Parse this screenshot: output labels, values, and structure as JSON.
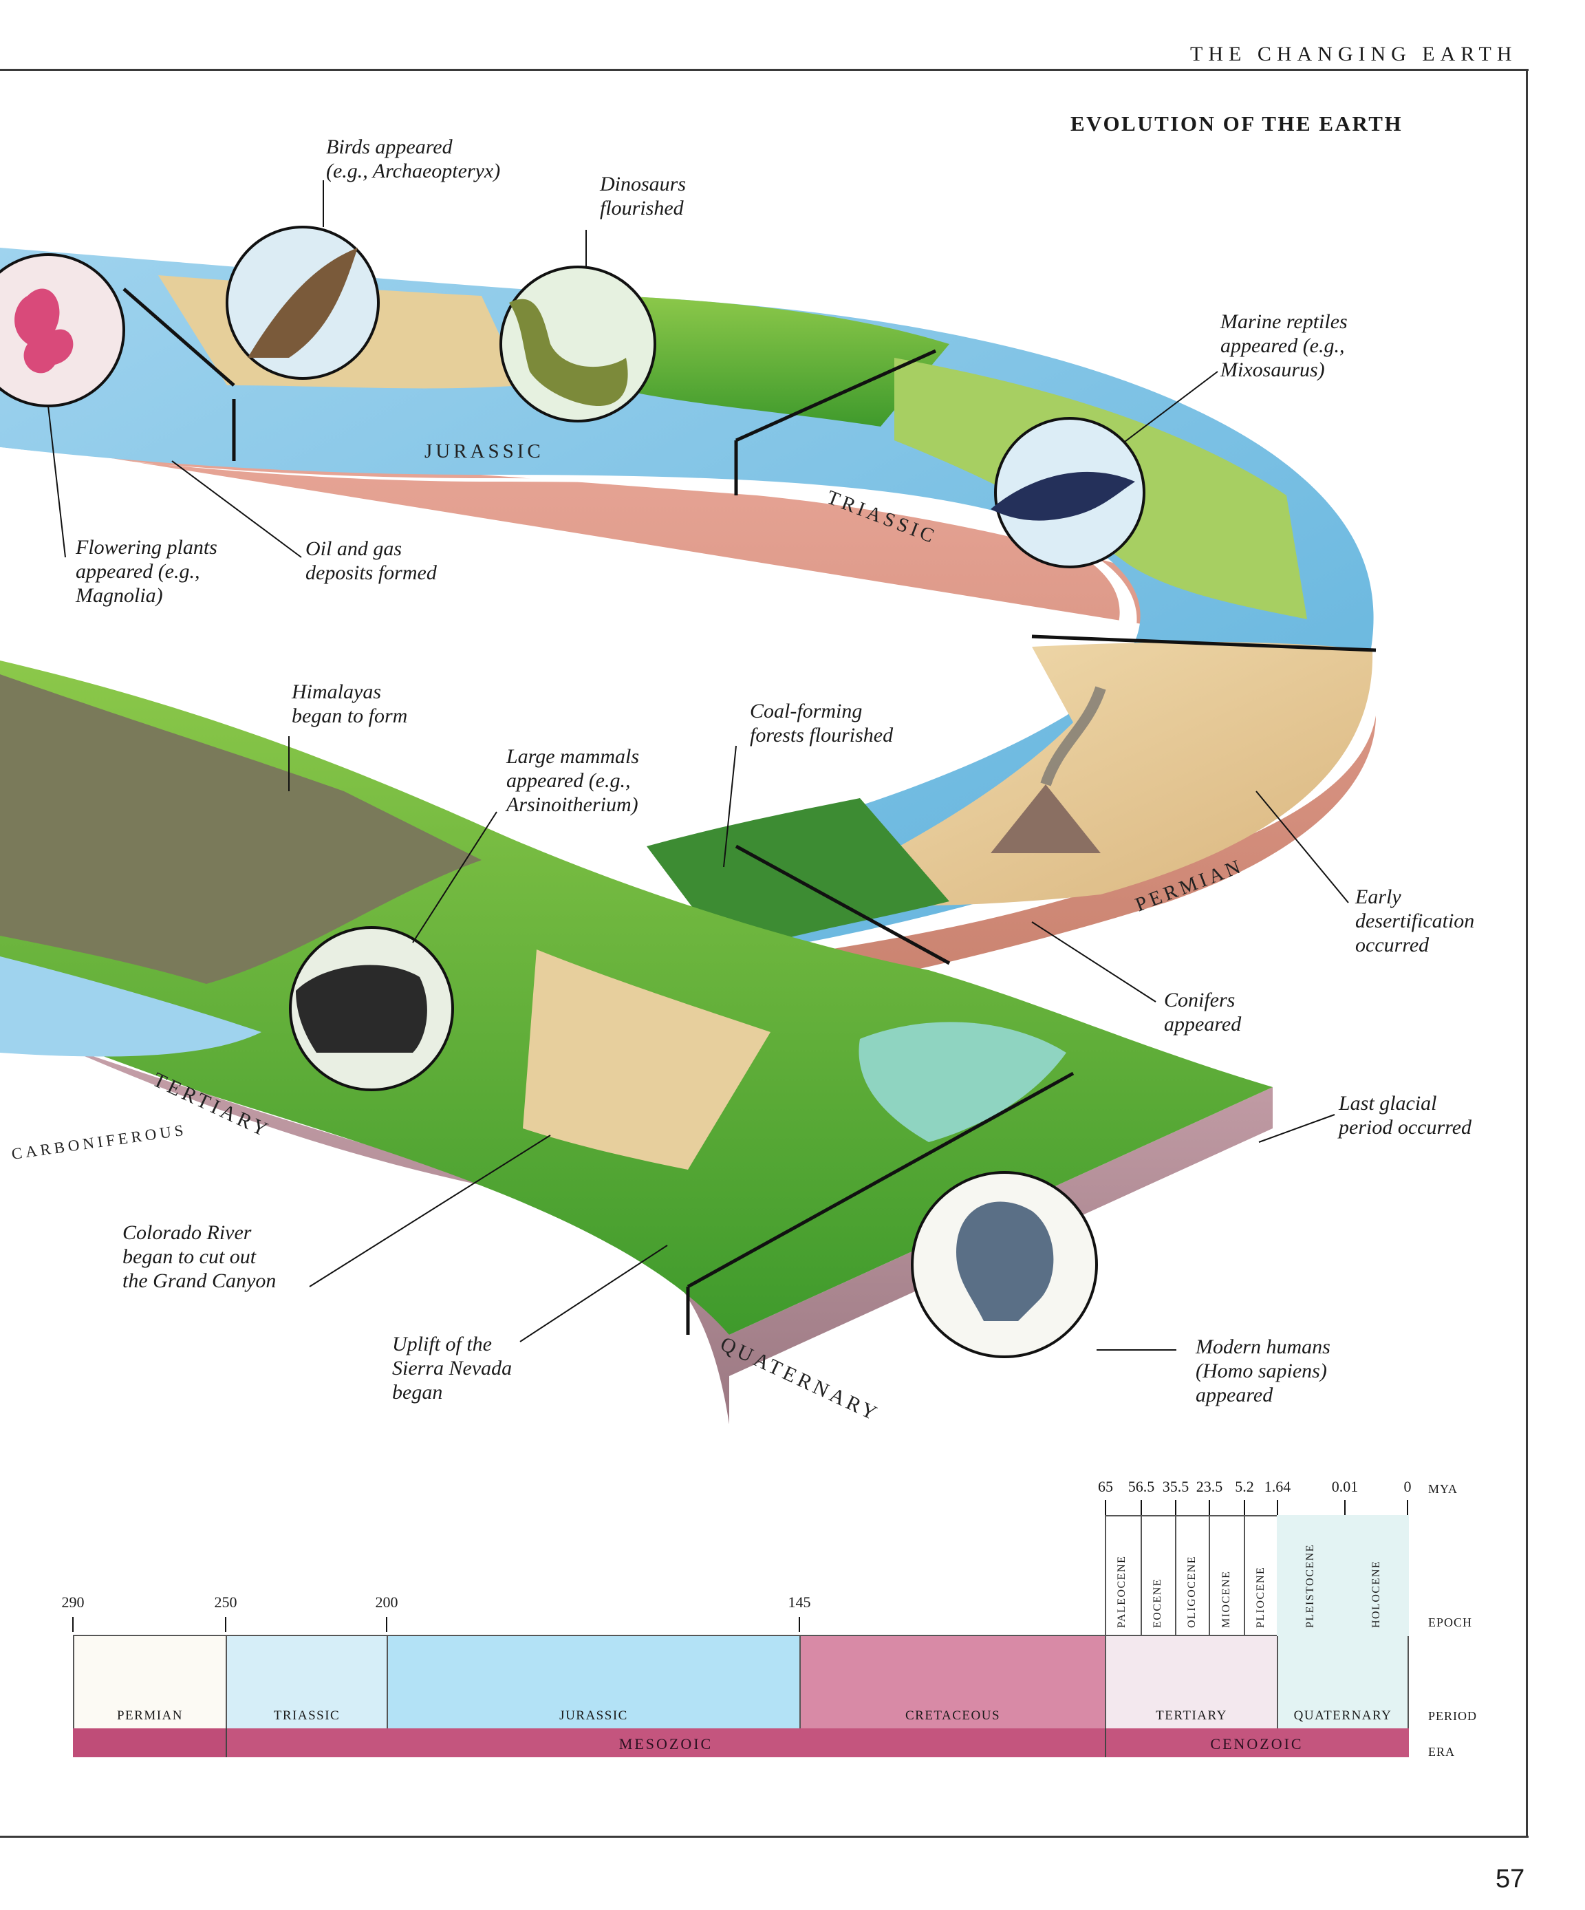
{
  "running_head": "THE CHANGING EARTH",
  "page_title": "EVOLUTION OF THE EARTH",
  "page_number": "57",
  "illustration": {
    "period_labels": {
      "jurassic": "JURASSIC",
      "triassic": "TRIASSIC",
      "permian": "PERMIAN",
      "tertiary": "TERTIARY",
      "carboniferous": "CARBONIFEROUS",
      "quaternary": "QUATERNARY"
    },
    "callouts": {
      "birds": "Birds appeared\n(e.g., Archaeopteryx)",
      "dinosaurs": "Dinosaurs\nflourished",
      "marine_reptiles": "Marine reptiles\nappeared (e.g.,\nMixosaurus)",
      "flowering_plants": "Flowering plants\nappeared (e.g.,\nMagnolia)",
      "oil_gas": "Oil and gas\ndeposits formed",
      "himalayas": "Himalayas\nbegan to form",
      "coal_forests": "Coal-forming\nforests flourished",
      "large_mammals": "Large mammals\nappeared (e.g.,\nArsinoitherium)",
      "desertification": "Early\ndesertification\noccurred",
      "conifers": "Conifers\nappeared",
      "glacial": "Last glacial\nperiod occurred",
      "colorado": "Colorado River\nbegan to cut out\nthe Grand Canyon",
      "sierra": "Uplift of  the\nSierra Nevada\nbegan",
      "humans": "Modern humans\n(Homo sapiens)\nappeared"
    }
  },
  "timeline": {
    "lower_ticks": [
      "290",
      "250",
      "200",
      "145"
    ],
    "upper_ticks": [
      "65",
      "56.5",
      "35.5",
      "23.5",
      "5.2",
      "1.64",
      "0.01",
      "0"
    ],
    "units": {
      "mya": "MYA",
      "epoch": "EPOCH",
      "period": "PERIOD",
      "era": "ERA"
    },
    "periods": [
      "PERMIAN",
      "TRIASSIC",
      "JURASSIC",
      "CRETACEOUS",
      "TERTIARY",
      "QUATERNARY"
    ],
    "eras": [
      "MESOZOIC",
      "CENOZOIC"
    ],
    "epochs": [
      "PALEOCENE",
      "EOCENE",
      "OLIGOCENE",
      "MIOCENE",
      "PLIOCENE",
      "PLEISTOCENE",
      "HOLOCENE"
    ],
    "colors": {
      "permian": "#fcfaf4",
      "triassic": "#d6eef8",
      "jurassic": "#b3e2f6",
      "cretaceous": "#d88aa6",
      "tertiary": "#f3e8ee",
      "quaternary": "#e3f3f3",
      "era": "#c4557e",
      "era_paleozoic": "#bf4d78"
    }
  }
}
